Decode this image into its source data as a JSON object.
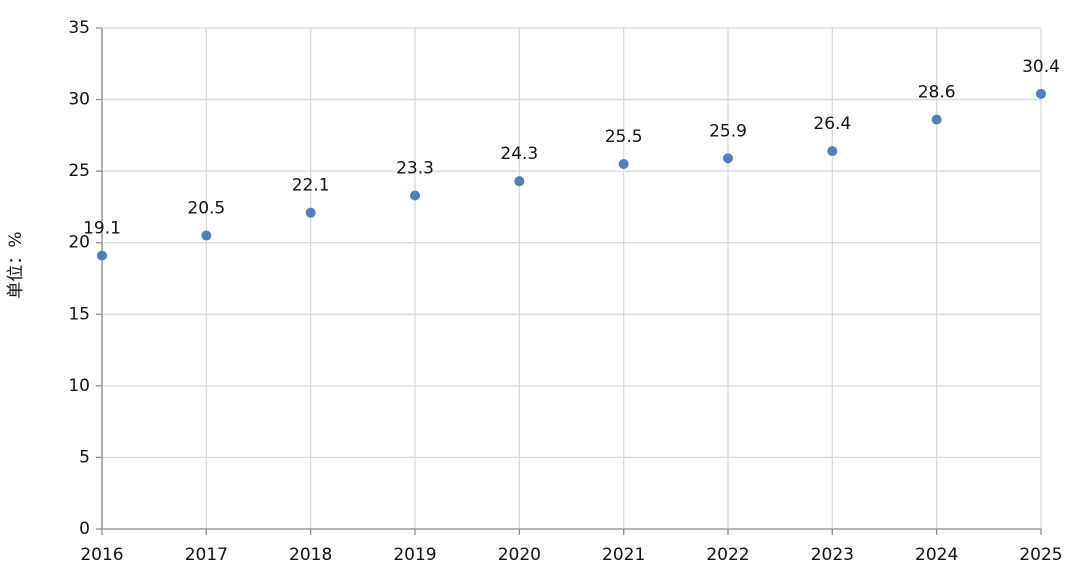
{
  "chart_data": {
    "type": "scatter",
    "y_label": "单位：%",
    "x": [
      2016,
      2017,
      2018,
      2019,
      2020,
      2021,
      2022,
      2023,
      2024,
      2025
    ],
    "values": [
      19.1,
      20.5,
      22.1,
      23.3,
      24.3,
      25.5,
      25.9,
      26.4,
      28.6,
      30.4
    ],
    "color": "#4f7fbf",
    "xlim": [
      2016,
      2025
    ],
    "xticks": [
      2016,
      2017,
      2018,
      2019,
      2020,
      2021,
      2022,
      2023,
      2024,
      2025
    ],
    "ylim": [
      0,
      35
    ],
    "yticks": [
      0,
      5,
      10,
      15,
      20,
      25,
      30,
      35
    ],
    "grid": true
  }
}
